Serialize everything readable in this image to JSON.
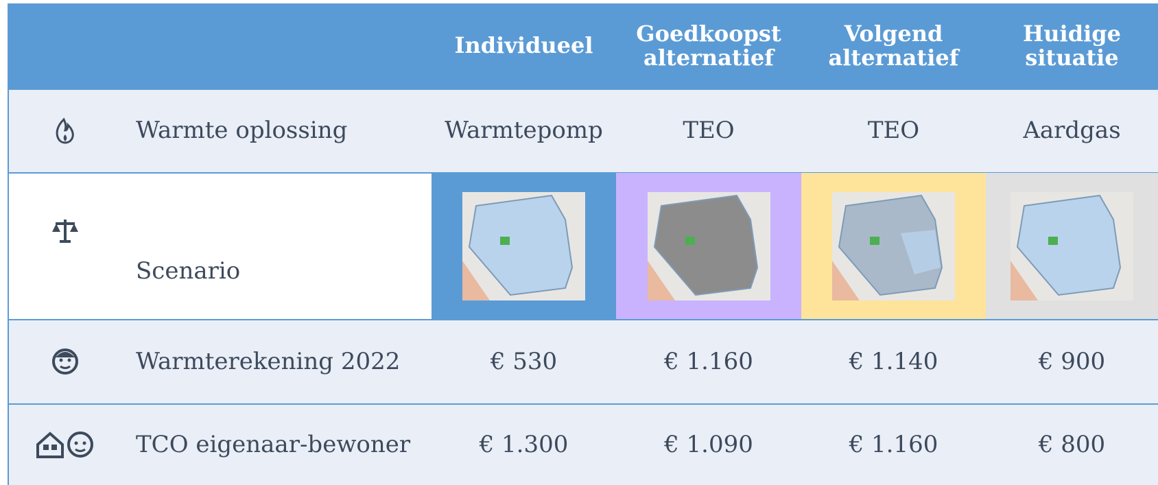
{
  "table": {
    "header": [
      "Individueel",
      "Goedkoopst alternatief",
      "Volgend alternatief",
      "Huidige situatie"
    ],
    "rows": [
      {
        "label": "Warmte oplossing",
        "cells": [
          "Warmtepomp",
          "TEO",
          "TEO",
          "Aardgas"
        ]
      },
      {
        "label": "Scenario"
      },
      {
        "label": "Warmterekening 2022",
        "cells": [
          "€ 530",
          "€ 1.160",
          "€ 1.140",
          "€ 900"
        ]
      },
      {
        "label": "TCO eigenaar-bewoner",
        "cells": [
          "€ 1.300",
          "€ 1.090",
          "€ 1.160",
          "€ 800"
        ]
      }
    ]
  }
}
